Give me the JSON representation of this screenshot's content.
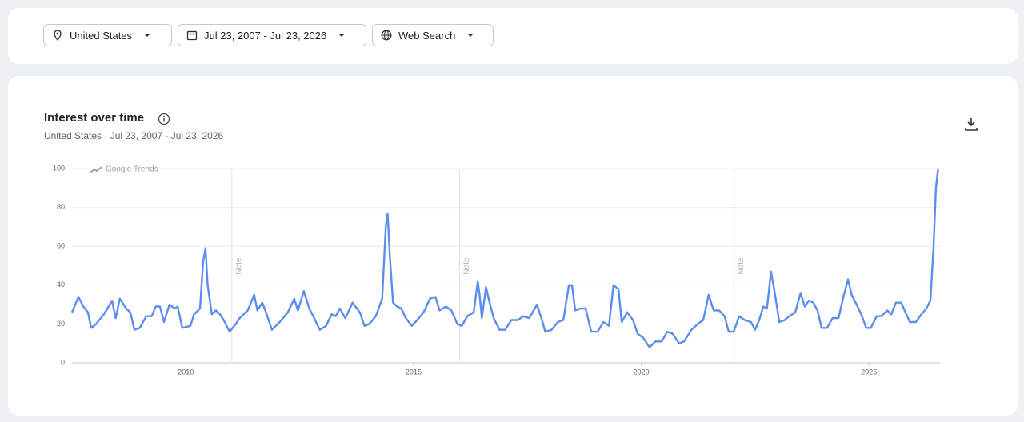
{
  "filters": {
    "location": "United States",
    "date_range": "Jul 23, 2007 - Jul 23, 2026",
    "search_type": "Web Search"
  },
  "chart_data": {
    "type": "line",
    "title": "Interest over time",
    "subtitle": "United States · Jul 23, 2007 - Jul 23, 2026",
    "watermark": "Google Trends",
    "x": [
      2007.5,
      2007.64,
      2007.75,
      2007.85,
      2007.92,
      2008.03,
      2008.2,
      2008.38,
      2008.46,
      2008.55,
      2008.69,
      2008.78,
      2008.87,
      2008.99,
      2009.13,
      2009.25,
      2009.34,
      2009.43,
      2009.52,
      2009.64,
      2009.75,
      2009.82,
      2009.92,
      2010.1,
      2010.18,
      2010.31,
      2010.38,
      2010.43,
      2010.48,
      2010.57,
      2010.66,
      2010.75,
      2010.83,
      2010.96,
      2011.1,
      2011.18,
      2011.36,
      2011.5,
      2011.57,
      2011.68,
      2011.76,
      2011.89,
      2012.06,
      2012.24,
      2012.38,
      2012.46,
      2012.59,
      2012.71,
      2012.82,
      2012.94,
      2013.08,
      2013.2,
      2013.29,
      2013.38,
      2013.5,
      2013.66,
      2013.82,
      2013.92,
      2014.03,
      2014.17,
      2014.31,
      2014.39,
      2014.43,
      2014.48,
      2014.55,
      2014.64,
      2014.73,
      2014.83,
      2014.96,
      2015.08,
      2015.22,
      2015.36,
      2015.48,
      2015.57,
      2015.71,
      2015.83,
      2015.96,
      2016.06,
      2016.18,
      2016.32,
      2016.41,
      2016.45,
      2016.5,
      2016.59,
      2016.66,
      2016.76,
      2016.89,
      2017.01,
      2017.15,
      2017.29,
      2017.41,
      2017.54,
      2017.71,
      2017.82,
      2017.89,
      2018.03,
      2018.17,
      2018.29,
      2018.41,
      2018.48,
      2018.55,
      2018.66,
      2018.78,
      2018.9,
      2019.04,
      2019.17,
      2019.29,
      2019.39,
      2019.5,
      2019.57,
      2019.69,
      2019.82,
      2019.92,
      2020.04,
      2020.18,
      2020.31,
      2020.45,
      2020.57,
      2020.69,
      2020.83,
      2020.94,
      2021.1,
      2021.24,
      2021.36,
      2021.48,
      2021.59,
      2021.71,
      2021.83,
      2021.92,
      2022.03,
      2022.15,
      2022.27,
      2022.41,
      2022.5,
      2022.59,
      2022.68,
      2022.76,
      2022.85,
      2022.94,
      2023.03,
      2023.15,
      2023.25,
      2023.38,
      2023.5,
      2023.59,
      2023.68,
      2023.78,
      2023.87,
      2023.96,
      2024.08,
      2024.2,
      2024.33,
      2024.43,
      2024.54,
      2024.62,
      2024.73,
      2024.83,
      2024.94,
      2025.04,
      2025.17,
      2025.27,
      2025.4,
      2025.49,
      2025.59,
      2025.71,
      2025.82,
      2025.9,
      2026.03,
      2026.15,
      2026.26,
      2026.35,
      2026.42,
      2026.47,
      2026.52
    ],
    "series": [
      {
        "color": "#5b8def",
        "values": [
          26,
          34,
          29,
          26,
          18,
          20,
          25,
          32,
          23,
          33,
          28,
          26,
          17,
          18,
          24,
          24,
          29,
          29,
          21,
          30,
          28,
          29,
          18,
          19,
          25,
          28,
          52,
          59,
          40,
          25,
          27,
          25,
          22,
          16,
          20,
          23,
          27,
          35,
          27,
          31,
          26,
          17,
          21,
          26,
          33,
          27,
          37,
          28,
          23,
          17,
          19,
          25,
          24,
          28,
          23,
          31,
          26,
          19,
          20,
          24,
          33,
          70,
          77,
          55,
          31,
          29,
          28,
          23,
          19,
          22,
          26,
          33,
          34,
          27,
          29,
          27,
          20,
          19,
          24,
          26,
          42,
          35,
          23,
          39,
          32,
          23,
          17,
          17,
          22,
          22,
          24,
          23,
          30,
          22,
          16,
          17,
          21,
          22,
          40,
          40,
          27,
          28,
          28,
          16,
          16,
          21,
          19,
          40,
          38,
          21,
          26,
          22,
          15,
          13,
          8,
          11,
          11,
          16,
          15,
          10,
          11,
          17,
          20,
          22,
          35,
          27,
          27,
          24,
          16,
          16,
          24,
          22,
          21,
          17,
          22,
          29,
          28,
          47,
          35,
          21,
          22,
          24,
          26,
          36,
          29,
          32,
          31,
          27,
          18,
          18,
          23,
          23,
          33,
          43,
          35,
          30,
          25,
          18,
          18,
          24,
          24,
          27,
          25,
          31,
          31,
          25,
          21,
          21,
          25,
          28,
          32,
          60,
          90,
          100
        ]
      }
    ],
    "xlim": [
      2007.5,
      2026.56
    ],
    "xticks": [
      2010,
      2015,
      2020,
      2025
    ],
    "ylim": [
      0,
      100
    ],
    "yticks": [
      0,
      20,
      40,
      60,
      80,
      100
    ],
    "grid": true,
    "annotations": [
      {
        "x": 2011.01,
        "label": "Note"
      },
      {
        "x": 2016.01,
        "label": "Note"
      },
      {
        "x": 2022.03,
        "label": "Note"
      }
    ]
  }
}
